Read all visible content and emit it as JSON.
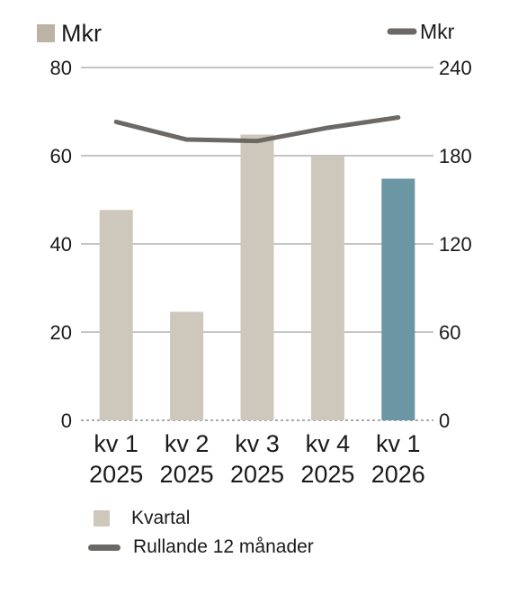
{
  "chart_data": {
    "type": "bar",
    "categories": [
      [
        "kv 1",
        "2025"
      ],
      [
        "kv 2",
        "2025"
      ],
      [
        "kv 3",
        "2025"
      ],
      [
        "kv 4",
        "2025"
      ],
      [
        "kv 1",
        "2026"
      ]
    ],
    "left_axis": {
      "unit": "Mkr",
      "ylim": [
        0,
        80
      ],
      "ticks": [
        "0",
        "20",
        "40",
        "60",
        "80"
      ]
    },
    "right_axis": {
      "unit": "Mkr",
      "ylim": [
        0,
        240
      ],
      "ticks": [
        "0",
        "60",
        "120",
        "180",
        "240"
      ]
    },
    "series": [
      {
        "name": "Kvartal",
        "type": "bar",
        "axis": "left",
        "values": [
          47.7,
          24.6,
          64.8,
          59.8,
          54.8
        ]
      },
      {
        "name": "Rullande 12 månader",
        "type": "line",
        "axis": "right",
        "values": [
          203,
          191,
          190,
          199,
          206
        ]
      }
    ],
    "colors": {
      "bar": "#cdc8bb",
      "bar_highlight": "#6b97a4",
      "line": "#6b6866",
      "grid": "#8a8a8a",
      "swatch_unit": "#bdb3a4"
    },
    "highlight_index": 4,
    "grid": true,
    "legend_position": "bottom-left"
  }
}
